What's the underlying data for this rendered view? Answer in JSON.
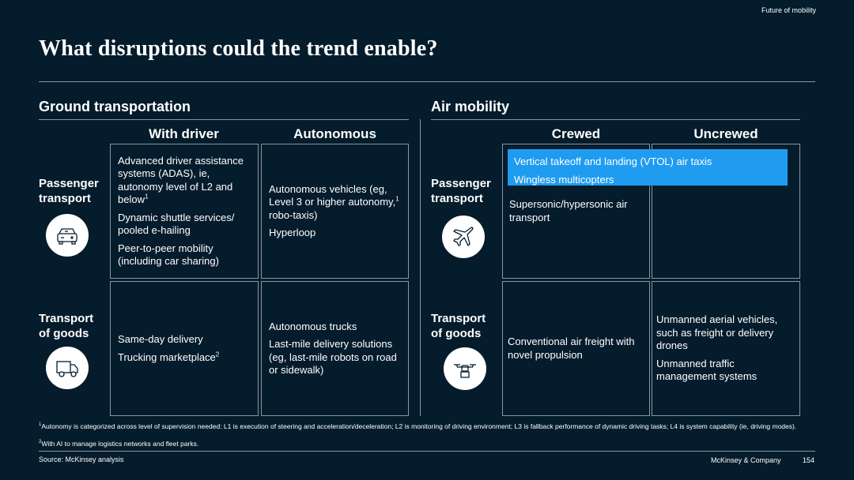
{
  "header": {
    "kicker": "Future of mobility",
    "title": "What disruptions could the trend enable?"
  },
  "ground": {
    "section_title": "Ground transportation",
    "col_with_driver": "With driver",
    "col_autonomous": "Autonomous",
    "row_passenger": "Passenger transport",
    "row_goods": "Transport of goods",
    "passenger_with_driver": {
      "item1": "Advanced driver assistance systems (ADAS), ie, autonomy level of L2 and below",
      "item1_sup": "1",
      "item2": "Dynamic shuttle services/ pooled e-hailing",
      "item3": "Peer-to-peer mobility (including car sharing)"
    },
    "passenger_autonomous": {
      "item1_pre": "Autonomous vehicles (eg, Level 3 or higher autonomy,",
      "item1_sup": "1",
      "item1_post": " robo-taxis)",
      "item2": "Hyperloop"
    },
    "goods_with_driver": {
      "item1": "Same-day delivery",
      "item2": "Trucking marketplace",
      "item2_sup": "2"
    },
    "goods_autonomous": {
      "item1": "Autonomous trucks",
      "item2": "Last-mile delivery solutions (eg, last-mile robots on road or sidewalk)"
    }
  },
  "air": {
    "section_title": "Air mobility",
    "col_crewed": "Crewed",
    "col_uncrewed": "Uncrewed",
    "row_passenger": "Passenger transport",
    "row_goods": "Transport of goods",
    "highlight_item1": "Vertical takeoff and landing (VTOL) air taxis",
    "highlight_item2": "Wingless multicopters",
    "highlight_color": "#1f9cf0",
    "passenger_crewed": "Supersonic/hypersonic air transport",
    "goods_crewed": "Conventional air freight with novel propulsion",
    "goods_uncrewed": {
      "item1": "Unmanned aerial vehicles, such as freight or delivery drones",
      "item2": "Unmanned traffic management systems"
    }
  },
  "icons": {
    "ground_passenger": "car-icon",
    "ground_goods": "truck-icon",
    "air_passenger": "airplane-icon",
    "air_goods": "drone-icon"
  },
  "footnotes": {
    "fn1_marker": "1",
    "fn1": "Autonomy is categorized across level of supervision needed: L1 is execution of steering and acceleration/deceleration; L2 is monitoring of driving environment; L3 is fallback performance of dynamic driving tasks; L4 is system capability (ie, driving modes).",
    "fn2_marker": "2",
    "fn2": "With AI to manage logistics networks and fleet parks."
  },
  "footer": {
    "source": "Source: McKinsey analysis",
    "company": "McKinsey & Company",
    "page": "154"
  },
  "colors": {
    "background": "#051c2c",
    "rule": "#8a97a2",
    "text": "#ffffff"
  }
}
